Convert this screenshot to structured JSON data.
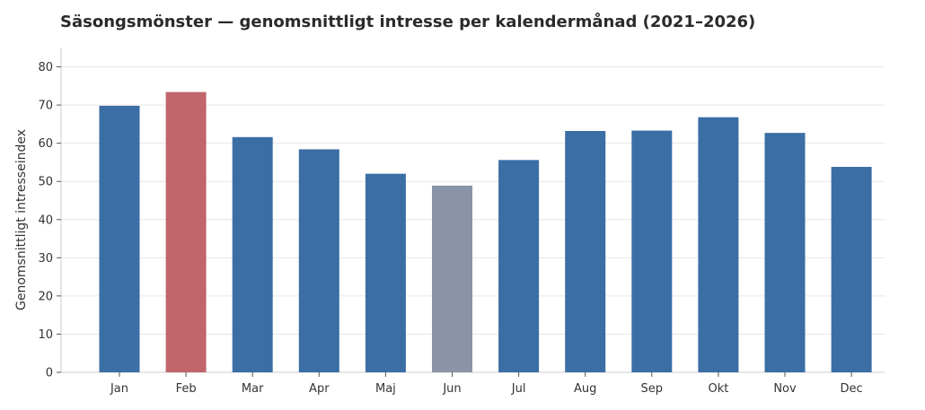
{
  "chart_data": {
    "type": "bar",
    "title": "Säsongsmönster — genomsnittligt intresse per kalendermånad (2021–2026)",
    "xlabel": "",
    "ylabel": "Genomsnittligt intresseindex",
    "ylim": [
      0,
      85
    ],
    "yticks": [
      0,
      10,
      20,
      30,
      40,
      50,
      60,
      70,
      80
    ],
    "grid": true,
    "categories": [
      "Jan",
      "Feb",
      "Mar",
      "Apr",
      "Maj",
      "Jun",
      "Jul",
      "Aug",
      "Sep",
      "Okt",
      "Nov",
      "Dec"
    ],
    "values": [
      69.8,
      73.4,
      61.6,
      58.4,
      52.0,
      48.9,
      55.6,
      63.2,
      63.3,
      66.8,
      62.7,
      53.8
    ],
    "colors": {
      "default": "#3b6ea5",
      "max": "#c0666a",
      "min": "#8a94a6"
    }
  }
}
